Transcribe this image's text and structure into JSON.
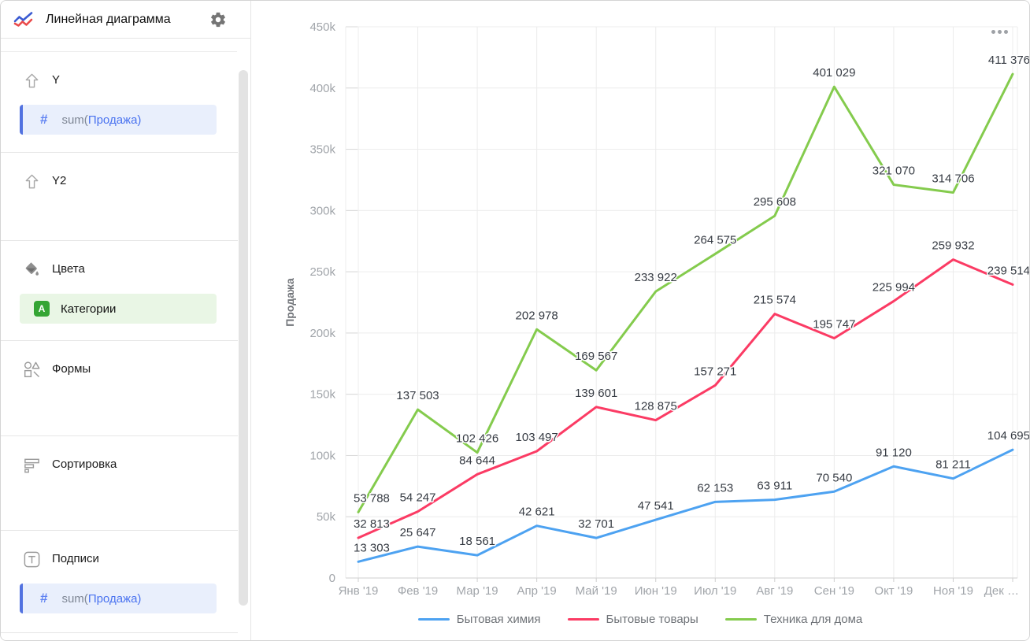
{
  "header": {
    "title": "Линейная диаграмма"
  },
  "sidebar": {
    "sections": {
      "y": {
        "label": "Y",
        "icon": "arrow-up-icon"
      },
      "y2": {
        "label": "Y2",
        "icon": "arrow-up-icon"
      },
      "colors": {
        "label": "Цвета",
        "icon": "paint-bucket-icon"
      },
      "shapes": {
        "label": "Формы",
        "icon": "shapes-icon"
      },
      "sort": {
        "label": "Сортировка",
        "icon": "sort-bars-icon"
      },
      "labels": {
        "label": "Подписи",
        "icon": "text-label-icon"
      }
    },
    "fields": {
      "y_measure": {
        "fn": "sum(",
        "name": "Продажа",
        "close": ")",
        "icon": "hash-icon"
      },
      "color_dimension": {
        "badge": "A",
        "name": "Категории"
      },
      "label_measure": {
        "fn": "sum(",
        "name": "Продажа",
        "close": ")",
        "icon": "hash-icon"
      }
    }
  },
  "chart": {
    "menu_icon": "ellipsis-icon"
  },
  "colors": {
    "measure_accent": "#5272e0",
    "measure_bg": "#e9effc",
    "dimension_badge": "#34a534",
    "dimension_bg": "#e9f6e5"
  },
  "chart_data": {
    "type": "line",
    "title": "",
    "xlabel": "",
    "ylabel": "Продажа",
    "categories": [
      "Янв '19",
      "Фев '19",
      "Мар '19",
      "Апр '19",
      "Май '19",
      "Июн '19",
      "Июл '19",
      "Авг '19",
      "Сен '19",
      "Окт '19",
      "Ноя '19",
      "Дек …"
    ],
    "series": [
      {
        "name": "Бытовая химия",
        "color": "#4DA2F1",
        "values": [
          13303,
          25647,
          18561,
          42621,
          32701,
          47541,
          62153,
          63911,
          70540,
          91120,
          81211,
          104695
        ]
      },
      {
        "name": "Бытовые товары",
        "color": "#FB3B64",
        "values": [
          32813,
          54247,
          84644,
          103497,
          139601,
          128875,
          157271,
          215574,
          195747,
          225994,
          259932,
          239514
        ]
      },
      {
        "name": "Техника для дома",
        "color": "#84CB4D",
        "values": [
          53788,
          137503,
          102426,
          202978,
          169567,
          233922,
          264575,
          295608,
          401029,
          321070,
          314706,
          411376
        ]
      }
    ],
    "ylim": [
      0,
      450000
    ],
    "ytick_step": 50000,
    "ytick_labels": [
      "0",
      "50k",
      "100k",
      "150k",
      "200k",
      "250k",
      "300k",
      "350k",
      "400k",
      "450k"
    ],
    "grid": true,
    "legend_position": "bottom",
    "data_labels": true
  }
}
